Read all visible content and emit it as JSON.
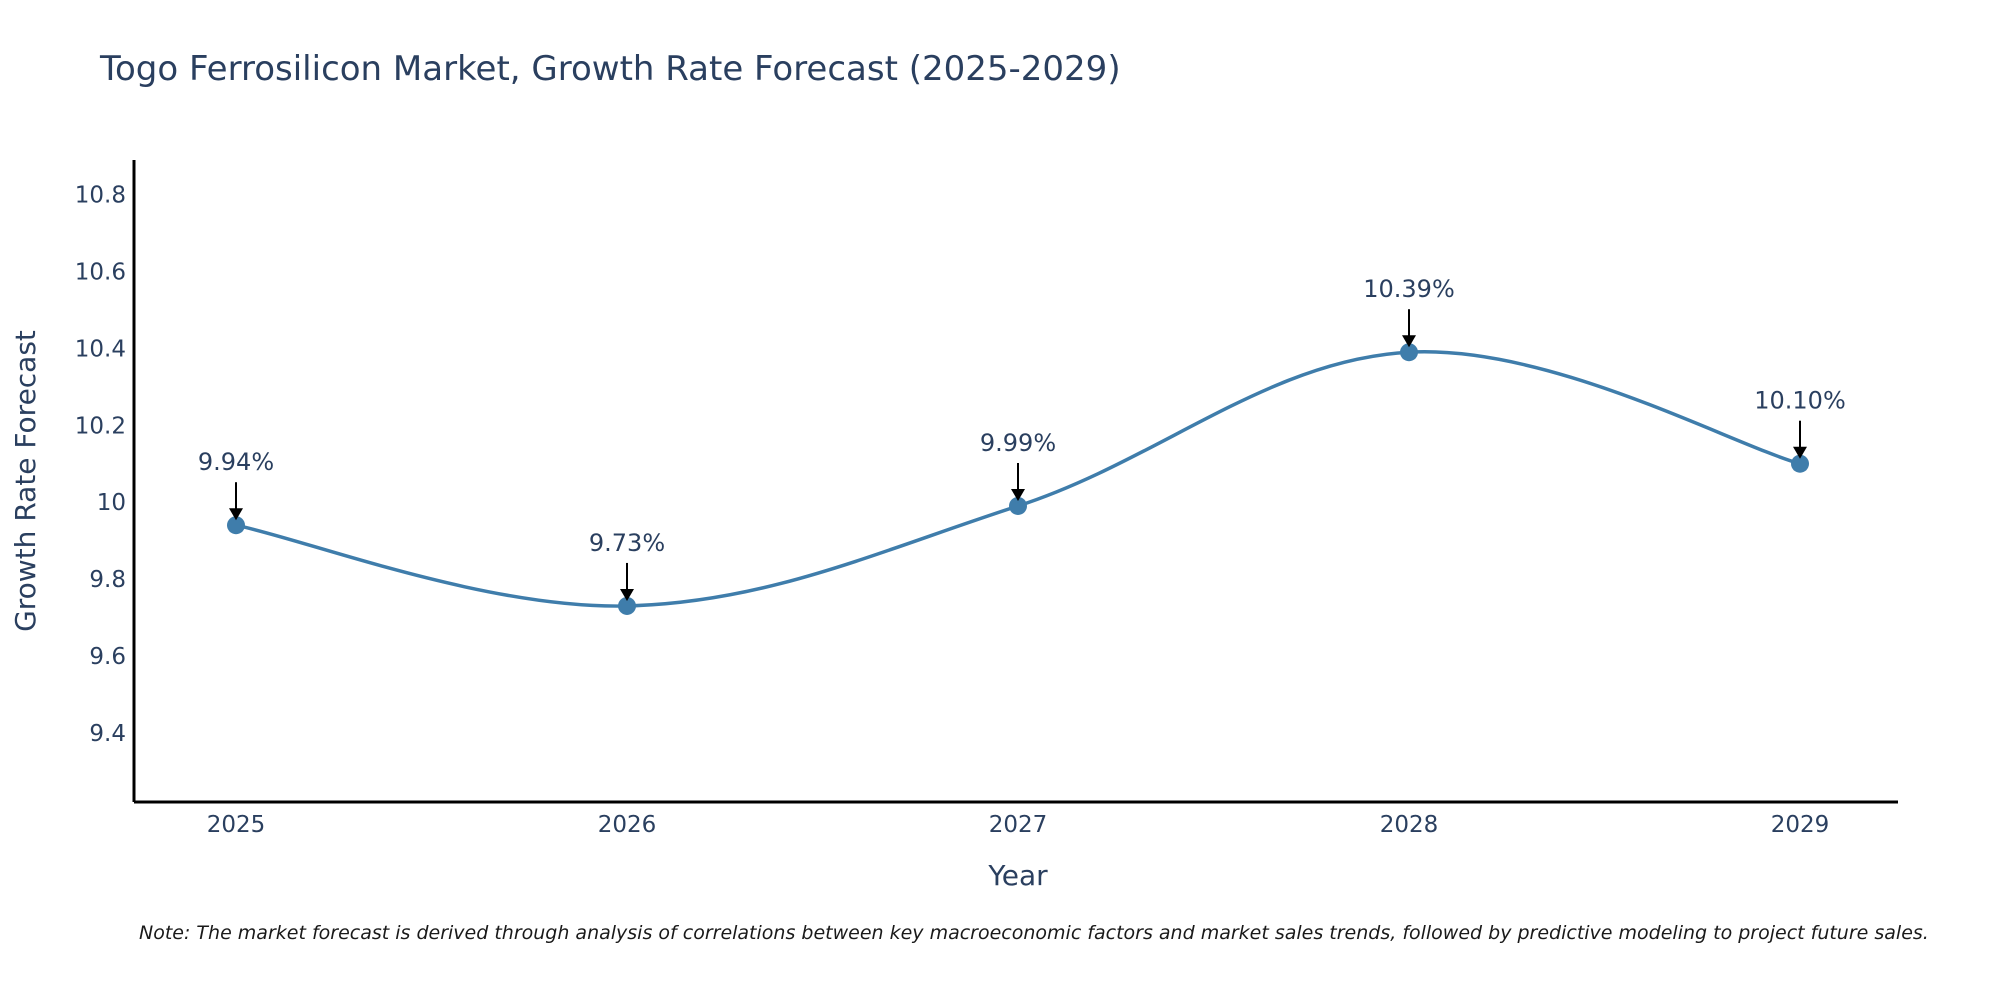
{
  "chart_data": {
    "type": "line",
    "title": "Togo Ferrosilicon Market, Growth Rate Forecast (2025-2029)",
    "xlabel": "Year",
    "ylabel": "Growth Rate Forecast",
    "categories": [
      "2025",
      "2026",
      "2027",
      "2028",
      "2029"
    ],
    "values": [
      9.94,
      9.73,
      9.99,
      10.39,
      10.1
    ],
    "data_labels": [
      "9.94%",
      "9.73%",
      "9.99%",
      "10.39%",
      "10.10%"
    ],
    "ylim": [
      9.22,
      10.89
    ],
    "yticks": [
      9.4,
      9.6,
      9.8,
      10,
      10.2,
      10.4,
      10.6,
      10.8
    ],
    "ytick_labels": [
      "9.4",
      "9.6",
      "9.8",
      "10",
      "10.2",
      "10.4",
      "10.6",
      "10.8"
    ],
    "line_shape": "spline",
    "grid": false,
    "note": "Note: The market forecast is derived through analysis of correlations between key macroeconomic factors and market sales trends, followed by predictive modeling to project future sales."
  },
  "colors": {
    "line": "#3f7dab",
    "marker": "#3f7dab",
    "axis": "#000000",
    "text": "#2a3f5f",
    "arrow": "#000000"
  }
}
